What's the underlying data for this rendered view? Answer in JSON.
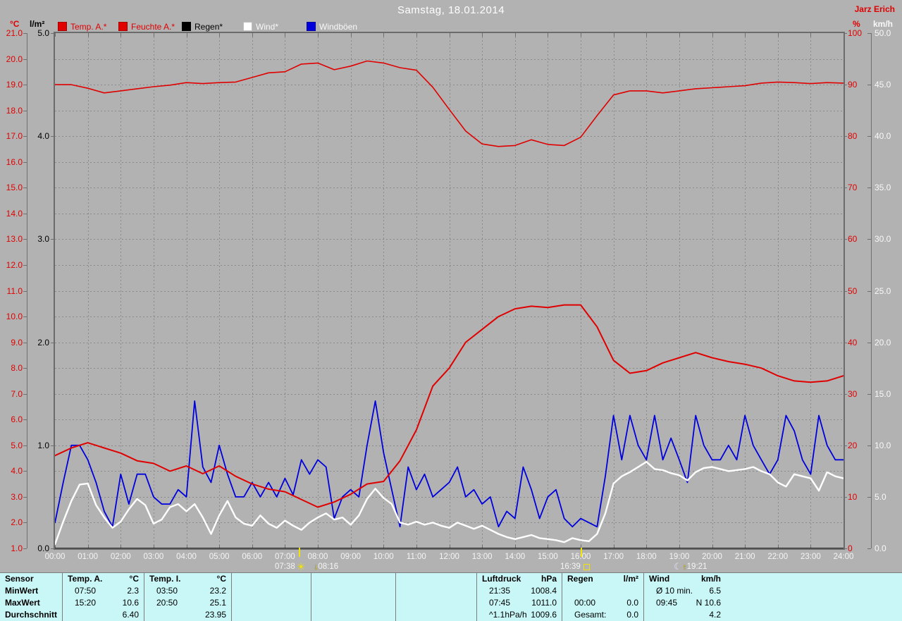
{
  "window": {
    "title": "Samstag, 18.01.2014",
    "user": "Jarz Erich"
  },
  "colors": {
    "background": "#b2b2b2",
    "plot_background": "#b2b2b2",
    "grid": "#898989",
    "frame": "#6b6b6b",
    "axis_red": "#e00000",
    "axis_black": "#000000",
    "axis_white": "#f8f8f8",
    "temp_line": "#e00000",
    "humidity_line": "#e00000",
    "wind_line": "#ffffff",
    "gust_line": "#0000dd",
    "rain_line": "#000000",
    "table_background": "#c9f7f7",
    "table_divider": "#7d7d7d",
    "marker_yellow": "#f0e400",
    "x_label": "#f5f5f5",
    "title": "#ffffff"
  },
  "legend": {
    "items": [
      {
        "key": "temp",
        "label": "Temp. A.*",
        "swatch": "#e00000",
        "text_color": "#e00000"
      },
      {
        "key": "feuchte",
        "label": "Feuchte A.*",
        "swatch": "#e00000",
        "text_color": "#e00000"
      },
      {
        "key": "regen",
        "label": "Regen*",
        "swatch": "#000000",
        "text_color": "#000000"
      },
      {
        "key": "wind",
        "label": "Wind*",
        "swatch": "#ffffff",
        "text_color": "#f8f8f8"
      },
      {
        "key": "boeen",
        "label": "Windböen",
        "swatch": "#0000dd",
        "text_color": "#f8f8f8"
      }
    ]
  },
  "sun_moon_markers": {
    "sunrise": {
      "time": "07:38",
      "icon": "sun-icon"
    },
    "moonset": {
      "time": "08:16",
      "icon": "arrow-down-icon"
    },
    "sunset": {
      "time": "16:39",
      "icon": "sun-square-icon"
    },
    "moonrise": {
      "time": "19:21",
      "icon": "moon-icon"
    }
  },
  "chart_data": {
    "type": "line",
    "title": "Samstag, 18.01.2014",
    "x_unit": "hour_of_day",
    "x_range": [
      0,
      24
    ],
    "x_tick_labels": [
      "00:00",
      "01:00",
      "02:00",
      "03:00",
      "04:00",
      "05:00",
      "06:00",
      "07:00",
      "08:00",
      "09:00",
      "10:00",
      "11:00",
      "12:00",
      "13:00",
      "14:00",
      "15:00",
      "16:00",
      "17:00",
      "18:00",
      "19:00",
      "20:00",
      "21:00",
      "22:00",
      "23:00",
      "24:00"
    ],
    "grid": true,
    "legend_position": "top",
    "axes": {
      "celsius": {
        "label": "°C",
        "range": [
          1,
          21
        ],
        "ticks": [
          "21.0",
          "20.0",
          "19.0",
          "18.0",
          "17.0",
          "16.0",
          "15.0",
          "14.0",
          "13.0",
          "12.0",
          "11.0",
          "10.0",
          "9.0",
          "8.0",
          "7.0",
          "6.0",
          "5.0",
          "4.0",
          "3.0",
          "2.0",
          "1.0"
        ]
      },
      "rain_lm2": {
        "label": "l/m²",
        "range": [
          0,
          5
        ],
        "ticks": [
          "5.0",
          "4.0",
          "3.0",
          "2.0",
          "1.0",
          "0.0"
        ]
      },
      "percent": {
        "label": "%",
        "range": [
          0,
          100
        ],
        "ticks": [
          "100",
          "90",
          "80",
          "70",
          "60",
          "50",
          "40",
          "30",
          "20",
          "10",
          "0"
        ]
      },
      "kmh": {
        "label": "km/h",
        "range": [
          0,
          50
        ],
        "ticks": [
          "50.0",
          "45.0",
          "40.0",
          "35.0",
          "30.0",
          "25.0",
          "20.0",
          "15.0",
          "10.0",
          "5.0",
          "0.0"
        ]
      }
    },
    "series": [
      {
        "key": "feuchte",
        "name": "Feuchte A.*",
        "axis": "percent",
        "color": "#e00000",
        "width": 1.6,
        "x_start": 0,
        "x_step": 0.5,
        "values": [
          90.0,
          90.0,
          89.3,
          88.4,
          88.8,
          89.2,
          89.6,
          89.9,
          90.4,
          90.2,
          90.4,
          90.5,
          91.4,
          92.3,
          92.5,
          94.0,
          94.2,
          92.9,
          93.6,
          94.6,
          94.2,
          93.3,
          92.8,
          89.5,
          85.2,
          81.0,
          78.5,
          78.0,
          78.2,
          79.3,
          78.4,
          78.2,
          79.8,
          84.0,
          88.0,
          88.8,
          88.8,
          88.4,
          88.8,
          89.2,
          89.4,
          89.6,
          89.8,
          90.3,
          90.5,
          90.4,
          90.2,
          90.4,
          90.3
        ]
      },
      {
        "key": "regen",
        "name": "Regen*",
        "axis": "rain_lm2",
        "color": "#000000",
        "width": 1.4,
        "x_start": 0,
        "x_step": 24,
        "values": [
          0.0,
          0.0
        ]
      },
      {
        "key": "boeen",
        "name": "Windböen",
        "axis": "kmh",
        "color": "#0000dd",
        "width": 1.8,
        "x_start": 0,
        "x_step": 0.25,
        "values": [
          2.5,
          6.4,
          10.0,
          10.0,
          8.6,
          6.4,
          3.6,
          2.1,
          7.2,
          4.3,
          7.2,
          7.2,
          5.0,
          4.3,
          4.3,
          5.7,
          5.0,
          14.3,
          7.9,
          6.4,
          10.0,
          7.2,
          5.0,
          5.0,
          6.4,
          5.0,
          6.4,
          5.0,
          6.8,
          5.2,
          8.6,
          7.2,
          8.6,
          7.9,
          2.9,
          5.0,
          5.7,
          5.0,
          10.0,
          14.3,
          9.3,
          5.7,
          2.1,
          7.9,
          5.7,
          7.2,
          5.0,
          5.7,
          6.4,
          7.9,
          5.0,
          5.7,
          4.3,
          5.0,
          2.1,
          3.6,
          2.9,
          7.9,
          5.7,
          2.9,
          5.0,
          5.7,
          2.9,
          2.1,
          2.9,
          2.5,
          2.1,
          7.0,
          12.9,
          8.6,
          12.9,
          10.0,
          8.6,
          12.9,
          8.6,
          10.7,
          8.6,
          6.4,
          12.9,
          10.0,
          8.6,
          8.6,
          10.0,
          8.6,
          12.9,
          10.0,
          8.6,
          7.2,
          8.6,
          12.9,
          11.4,
          8.6,
          7.2,
          12.9,
          10.0,
          8.6,
          8.6
        ]
      },
      {
        "key": "wind",
        "name": "Wind*",
        "axis": "kmh",
        "color": "#ffffff",
        "width": 2.4,
        "x_start": 0,
        "x_step": 0.25,
        "values": [
          0.4,
          2.6,
          4.6,
          6.2,
          6.3,
          4.2,
          3.0,
          2.0,
          2.6,
          3.8,
          4.8,
          4.2,
          2.4,
          2.8,
          4.0,
          4.3,
          3.6,
          4.3,
          3.0,
          1.4,
          3.2,
          4.6,
          3.0,
          2.4,
          2.2,
          3.2,
          2.4,
          2.0,
          2.7,
          2.2,
          1.8,
          2.5,
          3.0,
          3.4,
          2.8,
          3.0,
          2.3,
          3.2,
          4.8,
          5.8,
          4.9,
          4.3,
          2.5,
          2.3,
          2.6,
          2.3,
          2.5,
          2.2,
          2.0,
          2.5,
          2.2,
          1.9,
          2.2,
          1.8,
          1.4,
          1.1,
          0.9,
          1.1,
          1.3,
          1.0,
          0.9,
          0.8,
          0.6,
          1.0,
          0.8,
          0.7,
          1.4,
          3.4,
          6.3,
          7.0,
          7.4,
          7.9,
          8.4,
          7.7,
          7.6,
          7.3,
          7.1,
          6.6,
          7.4,
          7.8,
          7.9,
          7.7,
          7.5,
          7.6,
          7.7,
          7.9,
          7.5,
          7.2,
          6.4,
          6.0,
          7.2,
          7.0,
          6.8,
          5.6,
          7.4,
          7.0,
          6.8
        ]
      },
      {
        "key": "temp",
        "name": "Temp. A.*",
        "axis": "celsius",
        "color": "#e00000",
        "width": 2,
        "x_start": 0,
        "x_step": 0.5,
        "values": [
          4.6,
          4.9,
          5.1,
          4.9,
          4.7,
          4.4,
          4.3,
          4.0,
          4.2,
          3.9,
          4.2,
          3.8,
          3.5,
          3.3,
          3.2,
          2.9,
          2.6,
          2.8,
          3.1,
          3.5,
          3.6,
          4.4,
          5.6,
          7.3,
          8.0,
          9.0,
          9.5,
          10.0,
          10.3,
          10.4,
          10.35,
          10.45,
          10.45,
          9.6,
          8.3,
          7.8,
          7.9,
          8.2,
          8.4,
          8.6,
          8.4,
          8.25,
          8.15,
          8.0,
          7.7,
          7.5,
          7.45,
          7.5,
          7.7
        ]
      }
    ]
  },
  "table": {
    "header_column": {
      "title": "Sensor",
      "rows": [
        "MinWert",
        "MaxWert",
        "Durchschnitt"
      ]
    },
    "columns": [
      {
        "name": "Temp. A.",
        "unit": "°C",
        "rows": [
          [
            "07:50",
            "2.3"
          ],
          [
            "15:20",
            "10.6"
          ],
          [
            "",
            "6.40"
          ]
        ]
      },
      {
        "name": "Temp. I.",
        "unit": "°C",
        "rows": [
          [
            "03:50",
            "23.2"
          ],
          [
            "20:50",
            "25.1"
          ],
          [
            "",
            "23.95"
          ]
        ]
      },
      {
        "name": "",
        "unit": "",
        "rows": [
          [
            "",
            ""
          ],
          [
            "",
            ""
          ],
          [
            "",
            ""
          ]
        ]
      },
      {
        "name": "",
        "unit": "",
        "rows": [
          [
            "",
            ""
          ],
          [
            "",
            ""
          ],
          [
            "",
            ""
          ]
        ]
      },
      {
        "name": "",
        "unit": "",
        "rows": [
          [
            "",
            ""
          ],
          [
            "",
            ""
          ],
          [
            "",
            ""
          ]
        ]
      },
      {
        "name": "Luftdruck",
        "unit": "hPa",
        "rows": [
          [
            "21:35",
            "1008.4"
          ],
          [
            "07:45",
            "1011.0"
          ],
          [
            "^1.1hPa/h",
            "1009.6"
          ]
        ]
      },
      {
        "name": "Regen",
        "unit": "l/m²",
        "rows": [
          [
            "",
            ""
          ],
          [
            "00:00",
            "0.0"
          ],
          [
            "Gesamt:",
            "0.0"
          ]
        ]
      },
      {
        "name": "Wind",
        "unit": "km/h",
        "rows": [
          [
            "Ø 10 min.",
            "6.5"
          ],
          [
            "09:45",
            "N 10.6"
          ],
          [
            "",
            "4.2"
          ]
        ]
      },
      {
        "name": "",
        "unit": "",
        "rows": [
          [
            "",
            ""
          ],
          [
            "",
            ""
          ],
          [
            "",
            ""
          ]
        ],
        "no_border": true
      }
    ]
  }
}
